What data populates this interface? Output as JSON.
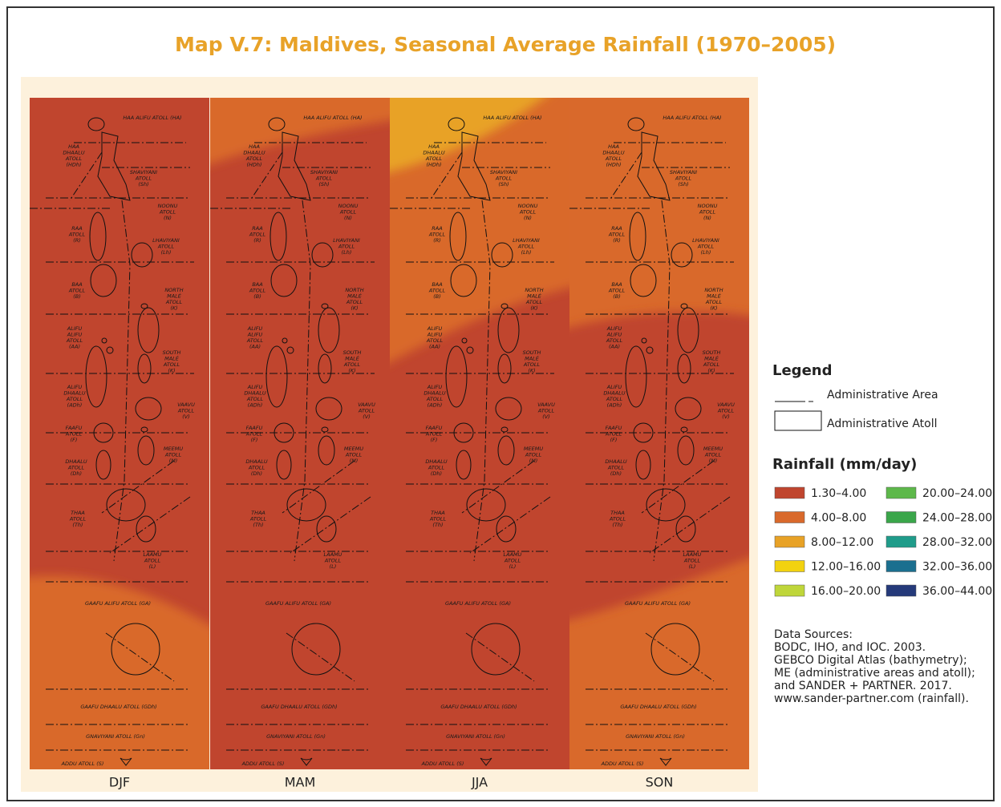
{
  "title": "Map V.7: Maldives, Seasonal Average Rainfall (1970–2005)",
  "panels": [
    "DJF",
    "MAM",
    "JJA",
    "SON"
  ],
  "atolls": [
    {
      "lines": [
        "HAA ALIFU ATOLL (HA)"
      ]
    },
    {
      "lines": [
        "HAA",
        "DHAALU",
        "ATOLL",
        "(HDh)"
      ]
    },
    {
      "lines": [
        "SHAVIYANI",
        "ATOLL",
        "(Sh)"
      ]
    },
    {
      "lines": [
        "NOONU",
        "ATOLL",
        "(N)"
      ]
    },
    {
      "lines": [
        "RAA",
        "ATOLL",
        "(R)"
      ]
    },
    {
      "lines": [
        "LHAVIYANI",
        "ATOLL",
        "(Lh)"
      ]
    },
    {
      "lines": [
        "BAA",
        "ATOLL",
        "(B)"
      ]
    },
    {
      "lines": [
        "NORTH",
        "MALÉ",
        "ATOLL",
        "(K)"
      ]
    },
    {
      "lines": [
        "ALIFU",
        "ALIFU",
        "ATOLL",
        "(AA)"
      ]
    },
    {
      "lines": [
        "SOUTH",
        "MALÉ",
        "ATOLL",
        "(K)"
      ]
    },
    {
      "lines": [
        "ALIFU",
        "DHAALU",
        "ATOLL",
        "(ADh)"
      ]
    },
    {
      "lines": [
        "VAAVU",
        "ATOLL",
        "(V)"
      ]
    },
    {
      "lines": [
        "FAAFU",
        "ATOLL",
        "(F)"
      ]
    },
    {
      "lines": [
        "MEEMU",
        "ATOLL",
        "(M)"
      ]
    },
    {
      "lines": [
        "DHAALU",
        "ATOLL",
        "(Dh)"
      ]
    },
    {
      "lines": [
        "THAA",
        "ATOLL",
        "(Th)"
      ]
    },
    {
      "lines": [
        "LAAMU",
        "ATOLL",
        "(L)"
      ]
    },
    {
      "lines": [
        "GAAFU ALIFU ATOLL (GA)"
      ]
    },
    {
      "lines": [
        "GAAFU DHAALU ATOLL (GDh)"
      ]
    },
    {
      "lines": [
        "GNAVIYANI ATOLL (Gn)"
      ]
    },
    {
      "lines": [
        "ADDU ATOLL (S)"
      ]
    }
  ],
  "legend": {
    "title": "Legend",
    "items": [
      "Administrative Area",
      "Administrative Atoll"
    ]
  },
  "rainfall": {
    "title": "Rainfall (mm/day)",
    "classes": [
      {
        "label": "1.30–4.00",
        "color": "#c0452e"
      },
      {
        "label": "4.00–8.00",
        "color": "#d9692b"
      },
      {
        "label": "8.00–12.00",
        "color": "#e8a226"
      },
      {
        "label": "12.00–16.00",
        "color": "#f2d20f"
      },
      {
        "label": "16.00–20.00",
        "color": "#bfd63a"
      },
      {
        "label": "20.00–24.00",
        "color": "#5db84a"
      },
      {
        "label": "24.00–28.00",
        "color": "#3aa64a"
      },
      {
        "label": "28.00–32.00",
        "color": "#1f9c8a"
      },
      {
        "label": "32.00–36.00",
        "color": "#1b6f8f"
      },
      {
        "label": "36.00–44.00",
        "color": "#253a7a"
      }
    ]
  },
  "sources": [
    "Data Sources:",
    "BODC, IHO, and IOC. 2003.",
    "GEBCO Digital Atlas (bathymetry);",
    "ME (administrative areas and atoll);",
    "and SANDER + PARTNER. 2017.",
    "www.sander-partner.com (rainfall)."
  ]
}
